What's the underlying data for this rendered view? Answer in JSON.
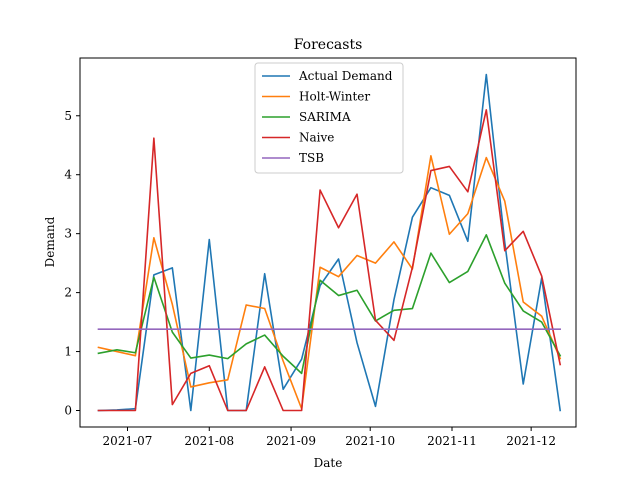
{
  "chart_data": {
    "type": "line",
    "title": "Forecasts",
    "xlabel": "Date",
    "ylabel": "Demand",
    "ylim": [
      -0.28,
      5.98
    ],
    "xlim": [
      "2021-06-13",
      "2021-12-18"
    ],
    "x_ticks": [
      "2021-07-01",
      "2021-08-01",
      "2021-09-01",
      "2021-10-01",
      "2021-11-01",
      "2021-12-01"
    ],
    "x_tick_labels": [
      "2021-07",
      "2021-08",
      "2021-09",
      "2021-10",
      "2021-11",
      "2021-12"
    ],
    "y_ticks": [
      0,
      1,
      2,
      3,
      4,
      5
    ],
    "y_tick_labels": [
      "0",
      "1",
      "2",
      "3",
      "4",
      "5"
    ],
    "grid": false,
    "legend_position": "top-center",
    "x": [
      "2021-06-20",
      "2021-06-27",
      "2021-07-04",
      "2021-07-11",
      "2021-07-18",
      "2021-07-25",
      "2021-08-01",
      "2021-08-08",
      "2021-08-15",
      "2021-08-22",
      "2021-08-29",
      "2021-09-05",
      "2021-09-12",
      "2021-09-19",
      "2021-09-26",
      "2021-10-03",
      "2021-10-10",
      "2021-10-17",
      "2021-10-24",
      "2021-10-31",
      "2021-11-07",
      "2021-11-14",
      "2021-11-21",
      "2021-11-28",
      "2021-12-05",
      "2021-12-12"
    ],
    "series": [
      {
        "name": "Actual Demand",
        "color": "#1f77b4",
        "values": [
          0.0,
          0.01,
          0.03,
          2.3,
          2.42,
          0.0,
          2.9,
          0.0,
          0.0,
          2.32,
          0.36,
          0.87,
          2.12,
          2.57,
          1.15,
          0.07,
          1.88,
          3.28,
          3.78,
          3.65,
          2.87,
          5.7,
          2.85,
          0.45,
          2.25,
          0.0
        ]
      },
      {
        "name": "Holt-Winter",
        "color": "#ff7f0e",
        "values": [
          1.07,
          1.0,
          0.93,
          2.93,
          1.8,
          0.4,
          0.47,
          0.52,
          1.79,
          1.73,
          0.84,
          0.03,
          2.43,
          2.27,
          2.63,
          2.5,
          2.86,
          2.4,
          4.32,
          2.99,
          3.34,
          4.29,
          3.55,
          1.84,
          1.6,
          0.88
        ]
      },
      {
        "name": "SARIMA",
        "color": "#2ca02c",
        "values": [
          0.97,
          1.03,
          0.98,
          2.26,
          1.33,
          0.89,
          0.94,
          0.88,
          1.13,
          1.28,
          0.92,
          0.63,
          2.21,
          1.95,
          2.04,
          1.52,
          1.7,
          1.73,
          2.67,
          2.17,
          2.36,
          2.98,
          2.16,
          1.69,
          1.5,
          0.93
        ]
      },
      {
        "name": "Naive",
        "color": "#d62728",
        "values": [
          0.0,
          0.0,
          0.0,
          4.62,
          0.1,
          0.63,
          0.76,
          0.0,
          0.0,
          0.74,
          0.0,
          0.0,
          3.74,
          3.1,
          3.67,
          1.53,
          1.19,
          2.43,
          4.07,
          4.14,
          3.71,
          5.1,
          2.71,
          3.04,
          2.28,
          0.78
        ]
      },
      {
        "name": "TSB",
        "color": "#9467bd",
        "values": [
          1.38,
          1.38,
          1.38,
          1.38,
          1.38,
          1.38,
          1.38,
          1.38,
          1.38,
          1.38,
          1.38,
          1.38,
          1.38,
          1.38,
          1.38,
          1.38,
          1.38,
          1.38,
          1.38,
          1.38,
          1.38,
          1.38,
          1.38,
          1.38,
          1.38,
          1.38
        ]
      }
    ]
  }
}
